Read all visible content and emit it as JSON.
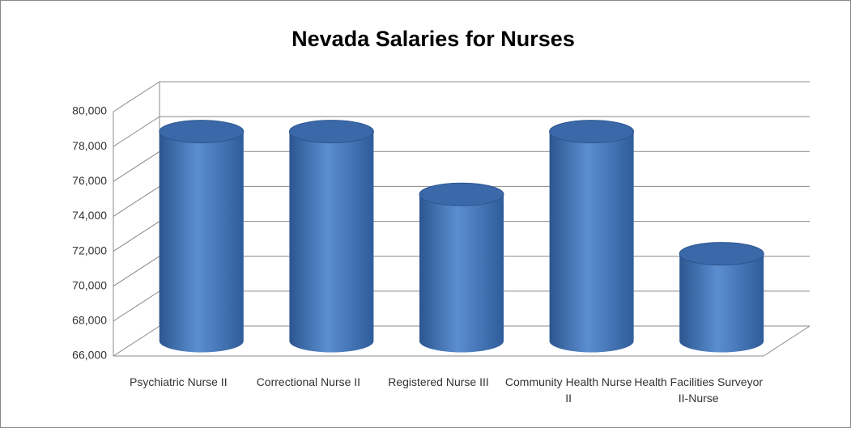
{
  "chart_data": {
    "type": "bar",
    "title": "Nevada Salaries for Nurses",
    "categories": [
      "Psychiatric Nurse II",
      "Correctional Nurse II",
      "Registered Nurse III",
      "Community Health Nurse II",
      "Health Facilities Surveyor II-Nurse"
    ],
    "values": [
      78000,
      78000,
      74400,
      78000,
      71000
    ],
    "color": "#4a7ebb",
    "ylim": [
      66000,
      80000
    ],
    "yticks": [
      {
        "value": 66000,
        "label": "66,000"
      },
      {
        "value": 68000,
        "label": "68,000"
      },
      {
        "value": 70000,
        "label": "70,000"
      },
      {
        "value": 72000,
        "label": "72,000"
      },
      {
        "value": 74000,
        "label": "74,000"
      },
      {
        "value": 76000,
        "label": "76,000"
      },
      {
        "value": 78000,
        "label": "78,000"
      },
      {
        "value": 80000,
        "label": "80,000"
      }
    ],
    "grid": true
  }
}
